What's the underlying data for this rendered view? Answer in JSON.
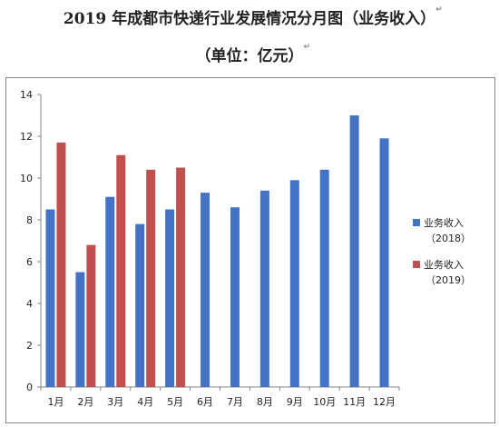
{
  "title": {
    "main": "2019 年成都市快递行业发展情况分月图（业务收入）",
    "unit": "（单位：亿元）",
    "para_mark": "↵"
  },
  "chart_data": {
    "type": "bar",
    "categories": [
      "1月",
      "2月",
      "3月",
      "4月",
      "5月",
      "6月",
      "7月",
      "8月",
      "9月",
      "10月",
      "11月",
      "12月"
    ],
    "series": [
      {
        "name": "业务收入（2018）",
        "legend_lines": [
          "业务收入",
          "（2018）"
        ],
        "color": "#4472C4",
        "values": [
          8.5,
          5.5,
          9.1,
          7.8,
          8.5,
          9.3,
          8.6,
          9.4,
          9.9,
          10.4,
          13.0,
          11.9
        ]
      },
      {
        "name": "业务收入（2019）",
        "legend_lines": [
          "业务收入",
          "（2019）"
        ],
        "color": "#C0504D",
        "values": [
          11.7,
          6.8,
          11.1,
          10.4,
          10.5,
          null,
          null,
          null,
          null,
          null,
          null,
          null
        ]
      }
    ],
    "yticks": [
      "0",
      "2",
      "4",
      "6",
      "8",
      "10",
      "12",
      "14"
    ],
    "ylim": [
      0,
      14
    ],
    "grid": false,
    "legend": "right"
  }
}
